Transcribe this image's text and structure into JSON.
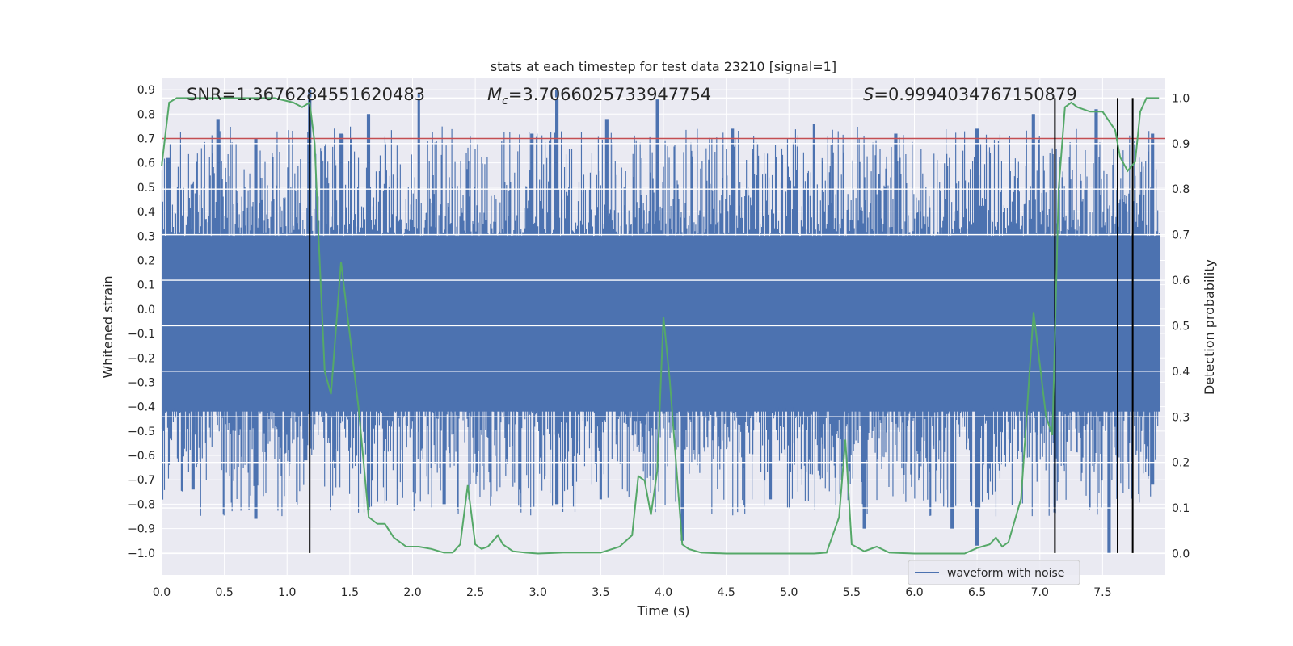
{
  "chart_data": {
    "type": "line",
    "title": "stats at each timestep for test data 23210 [signal=1]",
    "xlabel": "Time (s)",
    "ylabel": "Whitened strain",
    "y2label": "Detection probability",
    "xlim": [
      0,
      8
    ],
    "ylim": [
      -1.09,
      0.95
    ],
    "y2lim": [
      -0.047,
      1.045
    ],
    "x_ticks": [
      "0.0",
      "0.5",
      "1.0",
      "1.5",
      "2.0",
      "2.5",
      "3.0",
      "3.5",
      "4.0",
      "4.5",
      "5.0",
      "5.5",
      "6.0",
      "6.5",
      "7.0",
      "7.5"
    ],
    "y_ticks": [
      "0.9",
      "0.8",
      "0.7",
      "0.6",
      "0.5",
      "0.4",
      "0.3",
      "0.2",
      "0.1",
      "0.0",
      "−0.1",
      "−0.2",
      "−0.3",
      "−0.4",
      "−0.5",
      "−0.6",
      "−0.7",
      "−0.8",
      "−0.9",
      "−1.0"
    ],
    "y2_ticks": [
      "1.0",
      "0.9",
      "0.8",
      "0.7",
      "0.6",
      "0.5",
      "0.4",
      "0.3",
      "0.2",
      "0.1",
      "0.0"
    ],
    "grid": true,
    "legend_position": "lower-right",
    "annotations": {
      "snr": "SNR=1.3676284551620483",
      "mc_symbol": "M",
      "mc_sub": "c",
      "mc_value": "=3.7066025733947754",
      "s_symbol": "S",
      "s_value": "=0.9994034767150879"
    },
    "threshold": {
      "value": 0.7,
      "color": "#c44e52"
    },
    "vertical_lines_x": [
      1.18,
      7.12,
      7.62,
      7.74
    ],
    "series": [
      {
        "name": "waveform with noise",
        "axis": "left",
        "color": "#4c72b0",
        "description": "dense whitened-noise strain trace, upper envelope ~0.3-0.9, lower envelope ~-0.4 to -1.0",
        "upper_peaks": [
          [
            0.05,
            0.62
          ],
          [
            0.45,
            0.78
          ],
          [
            0.75,
            0.7
          ],
          [
            1.18,
            0.9
          ],
          [
            1.43,
            0.72
          ],
          [
            1.65,
            0.8
          ],
          [
            2.05,
            0.88
          ],
          [
            2.95,
            0.72
          ],
          [
            3.15,
            0.9
          ],
          [
            3.55,
            0.78
          ],
          [
            3.95,
            0.86
          ],
          [
            4.55,
            0.74
          ],
          [
            5.2,
            0.76
          ],
          [
            5.85,
            0.72
          ],
          [
            6.5,
            0.74
          ],
          [
            6.95,
            0.8
          ],
          [
            7.45,
            0.82
          ],
          [
            7.9,
            0.72
          ]
        ],
        "lower_peaks": [
          [
            0.25,
            -0.74
          ],
          [
            0.75,
            -0.86
          ],
          [
            1.15,
            -0.62
          ],
          [
            1.65,
            -0.82
          ],
          [
            2.25,
            -0.8
          ],
          [
            3.15,
            -0.8
          ],
          [
            3.5,
            -0.78
          ],
          [
            4.15,
            -0.95
          ],
          [
            4.85,
            -0.78
          ],
          [
            5.6,
            -0.9
          ],
          [
            6.3,
            -0.9
          ],
          [
            6.5,
            -0.97
          ],
          [
            7.55,
            -1.0
          ],
          [
            7.9,
            -0.72
          ]
        ]
      },
      {
        "name": "",
        "axis": "right",
        "color": "#55a868",
        "x": [
          0.0,
          0.06,
          0.12,
          0.3,
          0.6,
          0.9,
          1.05,
          1.12,
          1.18,
          1.22,
          1.25,
          1.3,
          1.35,
          1.43,
          1.5,
          1.57,
          1.65,
          1.72,
          1.78,
          1.85,
          1.95,
          2.05,
          2.15,
          2.25,
          2.32,
          2.38,
          2.44,
          2.5,
          2.55,
          2.6,
          2.68,
          2.72,
          2.8,
          2.9,
          3.0,
          3.2,
          3.5,
          3.65,
          3.75,
          3.8,
          3.85,
          3.9,
          3.95,
          4.0,
          4.05,
          4.1,
          4.15,
          4.2,
          4.3,
          4.5,
          5.0,
          5.2,
          5.3,
          5.4,
          5.45,
          5.5,
          5.6,
          5.7,
          5.8,
          6.0,
          6.4,
          6.5,
          6.6,
          6.65,
          6.7,
          6.75,
          6.85,
          6.95,
          7.05,
          7.1,
          7.15,
          7.2,
          7.25,
          7.3,
          7.4,
          7.5,
          7.6,
          7.64,
          7.7,
          7.76,
          7.8,
          7.85,
          7.9,
          7.95
        ],
        "values": [
          0.85,
          0.99,
          1.0,
          1.0,
          1.0,
          1.0,
          0.99,
          0.98,
          0.99,
          0.9,
          0.7,
          0.4,
          0.35,
          0.64,
          0.48,
          0.32,
          0.08,
          0.065,
          0.065,
          0.035,
          0.015,
          0.015,
          0.01,
          0.002,
          0.002,
          0.02,
          0.15,
          0.02,
          0.01,
          0.015,
          0.04,
          0.02,
          0.005,
          0.002,
          0.0,
          0.002,
          0.002,
          0.015,
          0.04,
          0.17,
          0.16,
          0.085,
          0.18,
          0.52,
          0.38,
          0.2,
          0.02,
          0.01,
          0.002,
          0.0,
          0.0,
          0.0,
          0.002,
          0.08,
          0.25,
          0.02,
          0.005,
          0.015,
          0.002,
          0.0,
          0.0,
          0.012,
          0.02,
          0.035,
          0.015,
          0.025,
          0.12,
          0.53,
          0.3,
          0.26,
          0.8,
          0.98,
          0.99,
          0.98,
          0.97,
          0.97,
          0.93,
          0.87,
          0.84,
          0.86,
          0.97,
          1.0,
          1.0,
          1.0
        ]
      }
    ]
  }
}
